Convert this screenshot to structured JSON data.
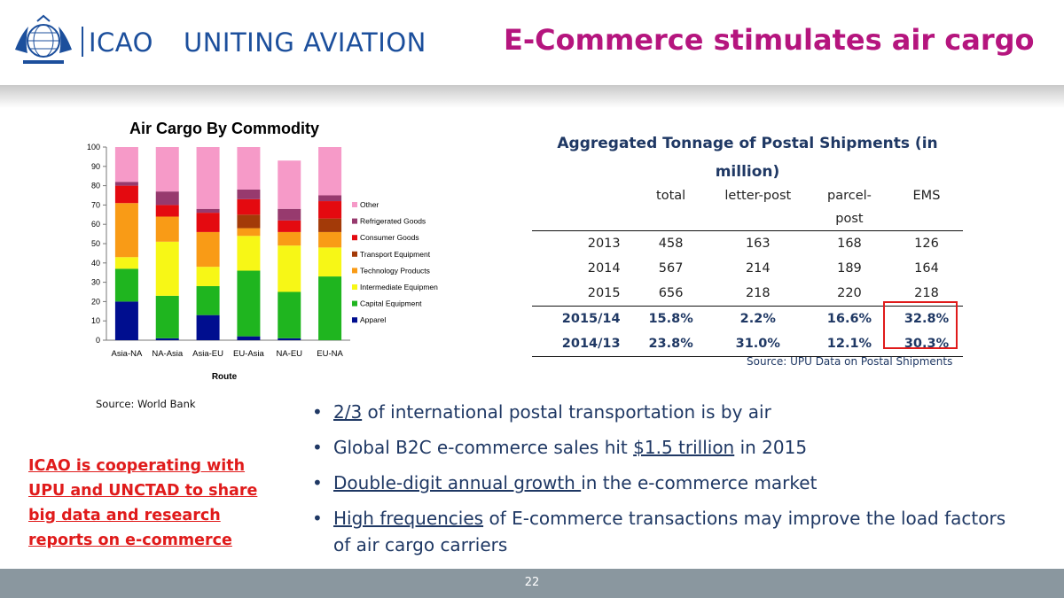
{
  "header": {
    "org": "ICAO",
    "tagline": "UNITING AVIATION",
    "title": "E-Commerce stimulates air cargo"
  },
  "chart_data": {
    "type": "bar",
    "stacked": true,
    "title": "Air Cargo By Commodity",
    "xlabel": "Route",
    "ylabel": "",
    "ylim": [
      0,
      100
    ],
    "yticks": [
      0,
      10,
      20,
      30,
      40,
      50,
      60,
      70,
      80,
      90,
      100
    ],
    "categories": [
      "Asia-NA",
      "NA-Asia",
      "Asia-EU",
      "EU-Asia",
      "NA-EU",
      "EU-NA"
    ],
    "legend_position": "right",
    "series": [
      {
        "name": "Apparel",
        "color": "#000e8f",
        "values": [
          20,
          1,
          13,
          2,
          1,
          0
        ]
      },
      {
        "name": "Capital Equipment",
        "color": "#1fb51f",
        "values": [
          17,
          22,
          15,
          34,
          24,
          33
        ]
      },
      {
        "name": "Intermediate Equipmen",
        "color": "#f7f716",
        "values": [
          6,
          28,
          10,
          18,
          24,
          15
        ]
      },
      {
        "name": "Technology Products",
        "color": "#f99b16",
        "values": [
          28,
          13,
          18,
          4,
          7,
          8
        ]
      },
      {
        "name": "Transport Equipment",
        "color": "#a33a08",
        "values": [
          0,
          0,
          0,
          7,
          0,
          7
        ]
      },
      {
        "name": "Consumer Goods",
        "color": "#e40a10",
        "values": [
          9,
          6,
          10,
          8,
          6,
          9
        ]
      },
      {
        "name": "Refrigerated Goods",
        "color": "#973a6e",
        "values": [
          2,
          7,
          2,
          5,
          6,
          3
        ]
      },
      {
        "name": "Other",
        "color": "#f69ac8",
        "values": [
          18,
          23,
          32,
          22,
          25,
          25
        ]
      }
    ]
  },
  "chart_source": "Source: World Bank",
  "postal_table": {
    "title": "Aggregated Tonnage of Postal Shipments (in million)",
    "columns": [
      "total",
      "letter-post",
      "parcel-post",
      "EMS"
    ],
    "rows": [
      {
        "label": "2013",
        "values": [
          "458",
          "163",
          "168",
          "126"
        ]
      },
      {
        "label": "2014",
        "values": [
          "567",
          "214",
          "189",
          "164"
        ]
      },
      {
        "label": "2015",
        "values": [
          "656",
          "218",
          "220",
          "218"
        ]
      }
    ],
    "growth_rows": [
      {
        "label": "2015/14",
        "values": [
          "15.8%",
          "2.2%",
          "16.6%",
          "32.8%"
        ]
      },
      {
        "label": "2014/13",
        "values": [
          "23.8%",
          "31.0%",
          "12.1%",
          "30.3%"
        ]
      }
    ],
    "source": "Source: UPU Data on Postal Shipments"
  },
  "bullets": [
    {
      "u": "2/3",
      "rest": " of international postal transportation is by air",
      "pre": ""
    },
    {
      "pre": "Global B2C e-commerce sales hit ",
      "u": "$1.5 trillion",
      "rest": " in 2015"
    },
    {
      "pre": "",
      "u": "Double-digit annual growth ",
      "rest": "in the e-commerce market"
    },
    {
      "pre": "",
      "u": "High frequencies",
      "rest": " of E-commerce transactions may improve the load factors of air cargo carriers"
    }
  ],
  "note": "ICAO is cooperating with UPU and UNCTAD to share big data and research reports on e-commerce",
  "footer": {
    "page": "22"
  },
  "colors": {
    "title": "#b5157e",
    "brand": "#1c4f9c",
    "body": "#1f3864",
    "note": "#e01b1b",
    "footer": "#8a979f"
  }
}
